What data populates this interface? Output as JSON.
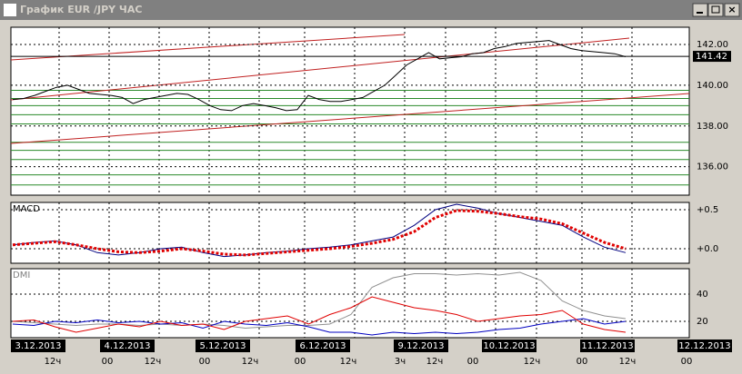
{
  "window": {
    "title": "График EUR /JPY ЧАС"
  },
  "chart_data": [
    {
      "type": "line",
      "ylim": [
        134.6,
        142.85
      ],
      "yticks": [
        {
          "value": 136,
          "label": "136.00"
        },
        {
          "value": 138,
          "label": "138.00"
        },
        {
          "value": 140,
          "label": "140.00"
        },
        {
          "value": 142,
          "label": "142.00"
        }
      ],
      "last_price": 141.42,
      "series": [
        {
          "color": "#000000",
          "values": [
            139.3,
            139.35,
            139.5,
            139.7,
            139.9,
            140.0,
            139.8,
            139.6,
            139.55,
            139.5,
            139.4,
            139.1,
            139.3,
            139.4,
            139.5,
            139.6,
            139.55,
            139.3,
            139.0,
            138.8,
            138.75,
            139.0,
            139.1,
            139.0,
            138.9,
            138.75,
            138.8,
            139.5,
            139.3,
            139.2,
            139.2,
            139.3,
            139.4,
            139.7,
            140.0,
            140.5,
            141.0,
            141.3,
            141.6,
            141.3,
            141.35,
            141.4,
            141.55,
            141.6,
            141.8,
            141.9,
            142.05,
            142.1,
            142.15,
            142.2,
            142.0,
            141.8,
            141.7,
            141.65,
            141.6,
            141.55,
            141.4
          ]
        }
      ]
    },
    {
      "type": "line",
      "title": "MACD",
      "ylim": [
        -0.186,
        0.593
      ],
      "yticks": [
        {
          "value": 0,
          "label": "+0.0"
        },
        {
          "value": 0.5,
          "label": "+0.5"
        }
      ],
      "series": [
        {
          "color": "#000080",
          "values": [
            0.05,
            0.08,
            0.1,
            0.05,
            -0.05,
            -0.08,
            -0.05,
            0.0,
            0.02,
            -0.05,
            -0.1,
            -0.08,
            -0.05,
            -0.03,
            0.0,
            0.02,
            0.05,
            0.1,
            0.15,
            0.3,
            0.5,
            0.57,
            0.52,
            0.45,
            0.4,
            0.35,
            0.3,
            0.15,
            0.02,
            -0.05
          ]
        },
        {
          "color": "#e00000",
          "dotted": true,
          "values": [
            0.05,
            0.07,
            0.09,
            0.05,
            0.0,
            -0.04,
            -0.05,
            -0.03,
            0.0,
            -0.03,
            -0.07,
            -0.08,
            -0.06,
            -0.04,
            -0.02,
            0.0,
            0.03,
            0.07,
            0.12,
            0.22,
            0.4,
            0.49,
            0.48,
            0.45,
            0.41,
            0.38,
            0.32,
            0.2,
            0.08,
            0.0
          ]
        }
      ]
    },
    {
      "type": "line",
      "title": "DMI",
      "ylim": [
        8,
        58.7
      ],
      "yticks": [
        20,
        40
      ],
      "series": [
        {
          "color": "#909090",
          "values": [
            20,
            19,
            18,
            17,
            18,
            18,
            17,
            18,
            17,
            18,
            17,
            15,
            16,
            17,
            17,
            18,
            25,
            45,
            52,
            55,
            55,
            54,
            55,
            54,
            56,
            50,
            35,
            28,
            24,
            22
          ]
        },
        {
          "color": "#0000c0",
          "values": [
            18,
            17,
            20,
            19,
            21,
            19,
            20,
            18,
            19,
            15,
            20,
            18,
            17,
            19,
            16,
            12,
            12,
            10,
            12,
            11,
            12,
            11,
            12,
            14,
            15,
            18,
            20,
            22,
            18,
            20
          ]
        },
        {
          "color": "#e00000",
          "values": [
            20,
            21,
            16,
            12,
            15,
            18,
            16,
            20,
            17,
            18,
            14,
            20,
            22,
            24,
            18,
            25,
            30,
            38,
            34,
            30,
            28,
            25,
            20,
            22,
            24,
            25,
            28,
            18,
            14,
            12
          ]
        }
      ]
    }
  ],
  "x_axis": {
    "dates": [
      "3.12.2013",
      "4.12.2013",
      "5.12.2013",
      "6.12.2013",
      "9.12.2013",
      "10.12.2013",
      "11.12.2013",
      "12.12.2013"
    ],
    "hours": [
      "12ч",
      "00",
      "12ч",
      "00",
      "12ч",
      "00",
      "12ч",
      "3ч",
      "12ч",
      "00",
      "12ч",
      "00",
      "12ч",
      "00"
    ]
  }
}
